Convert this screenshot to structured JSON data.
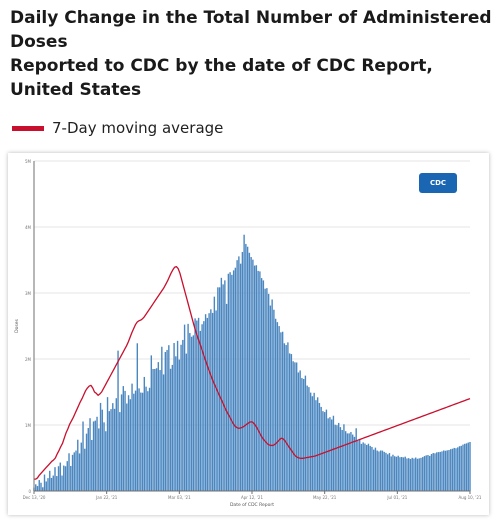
{
  "page": {
    "title_line1": "Daily Change in the Total Number of Administered Doses",
    "title_line2": "Reported to CDC by the date of CDC Report, United States"
  },
  "legend": {
    "label": "7-Day moving average",
    "color": "#c8102e"
  },
  "logo": {
    "text": "CDC",
    "name": "cdc-logo"
  },
  "colors": {
    "bars": "#4a86c0",
    "line": "#c8102e",
    "grid": "#e6e6e6",
    "axis": "#6f6f6f"
  },
  "chart_data": {
    "type": "bar",
    "title": "",
    "xlabel": "Date of CDC Report",
    "ylabel": "Doses",
    "ylim": [
      0,
      5000000
    ],
    "yticks": [
      0,
      1000000,
      2000000,
      3000000,
      4000000,
      5000000
    ],
    "ytick_labels": [
      "0",
      "1M",
      "2M",
      "3M",
      "4M",
      "5M"
    ],
    "x_tick_labels": [
      "Dec 13, '20",
      "Jan 22, '21",
      "Mar 03, '21",
      "Apr 12, '21",
      "May 22, '21",
      "Jul 01, '21",
      "Aug 10, '21"
    ],
    "x_tick_days": [
      0,
      40,
      80,
      120,
      160,
      200,
      240
    ],
    "grid": true,
    "start_day": 0,
    "series": [
      {
        "name": "Daily Change",
        "kind": "bar",
        "values": [
          52060,
          101232,
          74930,
          166101,
          125264,
          56567,
          249290,
          144522,
          194917,
          306226,
          197698,
          233958,
          361005,
          226281,
          375398,
          431003,
          234567,
          385722,
          374706,
          452244,
          571442,
          378815,
          548017,
          585442,
          613000,
          776599,
          569012,
          733542,
          1053071,
          641006,
          869131,
          954728,
          1103296,
          773317,
          1053806,
          1066689,
          1124768,
          948269,
          1334436,
          1232290,
          1040097,
          905651,
          1422493,
          1209993,
          1240622,
          1331289,
          1244946,
          1405718,
          2126602,
          1195429,
          1463262,
          1589612,
          1516806,
          1325734,
          1451416,
          1390856,
          1626659,
          1474710,
          1521520,
          2238126,
          1554733,
          1491922,
          1489099,
          1728312,
          1580983,
          1512227,
          1564051,
          2054713,
          1848768,
          1848738,
          1860123,
          1952402,
          1833005,
          2185734,
          1766221,
          2106138,
          2137117,
          2209307,
          1851946,
          1910768,
          2242111,
          2040931,
          2275244,
          1990761,
          2215893,
          2288587,
          2520733,
          2082209,
          2532436,
          2393211,
          2337212,
          2358718,
          2615566,
          2582418,
          2623656,
          2426221,
          2526578,
          2573101,
          2678931,
          2622646,
          2694000,
          2753102,
          2698315,
          2944811,
          2735640,
          3085910,
          3086024,
          3229812,
          3130380,
          3191651,
          2835212,
          3291962,
          3315082,
          3275136,
          3342582,
          3383104,
          3497264,
          3554919,
          3444402,
          3620813,
          3883212,
          3743287,
          3701103,
          3609232,
          3544711,
          3505474,
          3415226,
          3421010,
          3335162,
          3327224,
          3226019,
          3190713,
          3065200,
          3073806,
          2986419,
          2810218,
          2902005,
          2747004,
          2609813,
          2558621,
          2499003,
          2404102,
          2413315,
          2237926,
          2211620,
          2251811,
          2085113,
          2074606,
          1966114,
          1949219,
          1947002,
          1796204,
          1826605,
          1711007,
          1697115,
          1747812,
          1597401,
          1574102,
          1490603,
          1436004,
          1487601,
          1376102,
          1419115,
          1333601,
          1274109,
          1210216,
          1195502,
          1233308,
          1100812,
          1118415,
          1084011,
          1140300,
          1004107,
          996500,
          1031602,
          968110,
          924816,
          1011301,
          906302,
          872902,
          873403,
          893605,
          855101,
          820409,
          950602,
          760110,
          785803,
          714015,
          737108,
          718801,
          697213,
          716105,
          683409,
          667403,
          626909,
          656802,
          613005,
          599401,
          614112,
          611802,
          593004,
          578601,
          556106,
          575103,
          524108,
          549702,
          526701,
          519113,
          534604,
          512008,
          515007,
          509411,
          520315,
          493211,
          497902,
          485009,
          502501,
          491602,
          507101,
          488513,
          495215,
          502308,
          513811,
          529005,
          540216,
          545102,
          531907,
          560313,
          575004,
          570811,
          585602,
          589418,
          592512,
          600301,
          614215,
          609902,
          616007,
          621308,
          634105,
          640311,
          652909,
          647404,
          661102,
          678702,
          684911,
          703400,
          715105,
          721902,
          734000,
          742601
        ]
      },
      {
        "name": "7-Day moving average",
        "kind": "line",
        "values": [
          180000,
          180000,
          200000,
          240000,
          270000,
          300000,
          330000,
          360000,
          390000,
          420000,
          450000,
          470000,
          500000,
          560000,
          610000,
          670000,
          720000,
          800000,
          880000,
          940000,
          1010000,
          1060000,
          1110000,
          1170000,
          1230000,
          1290000,
          1350000,
          1400000,
          1460000,
          1520000,
          1560000,
          1590000,
          1600000,
          1560000,
          1500000,
          1480000,
          1450000,
          1470000,
          1500000,
          1550000,
          1600000,
          1650000,
          1700000,
          1750000,
          1800000,
          1850000,
          1900000,
          1950000,
          2000000,
          2050000,
          2100000,
          2150000,
          2200000,
          2260000,
          2330000,
          2400000,
          2460000,
          2520000,
          2560000,
          2580000,
          2590000,
          2610000,
          2640000,
          2680000,
          2720000,
          2760000,
          2800000,
          2840000,
          2880000,
          2920000,
          2960000,
          3000000,
          3040000,
          3080000,
          3130000,
          3180000,
          3240000,
          3300000,
          3350000,
          3390000,
          3400000,
          3370000,
          3300000,
          3200000,
          3100000,
          3000000,
          2900000,
          2800000,
          2700000,
          2600000,
          2500000,
          2410000,
          2330000,
          2250000,
          2170000,
          2090000,
          2010000,
          1930000,
          1850000,
          1780000,
          1710000,
          1640000,
          1580000,
          1520000,
          1460000,
          1400000,
          1340000,
          1280000,
          1220000,
          1170000,
          1120000,
          1070000,
          1020000,
          980000,
          960000,
          950000,
          955000,
          965000,
          980000,
          1000000,
          1020000,
          1040000,
          1050000,
          1040000,
          1010000,
          970000,
          920000,
          870000,
          820000,
          780000,
          750000,
          720000,
          700000,
          690000,
          690000,
          700000,
          720000,
          750000,
          780000,
          800000,
          790000,
          760000,
          720000,
          680000,
          640000,
          600000,
          560000,
          530000,
          510000,
          500000,
          495000,
          495000,
          500000,
          505000,
          510000,
          515000,
          520000,
          525000,
          530000,
          540000,
          550000,
          560000,
          570000,
          580000,
          590000,
          600000,
          610000,
          620000,
          630000,
          640000,
          650000,
          660000,
          670000,
          680000,
          690000,
          700000,
          710000,
          720000,
          730000,
          740000,
          750000,
          760000,
          770000,
          780000,
          790000,
          800000,
          810000,
          820000,
          830000,
          840000,
          850000,
          860000,
          870000,
          880000,
          890000,
          900000,
          910000,
          920000,
          930000,
          940000,
          950000,
          960000,
          970000,
          980000,
          990000,
          1000000,
          1010000,
          1020000,
          1030000,
          1040000,
          1050000,
          1060000,
          1070000,
          1080000,
          1090000,
          1100000,
          1110000,
          1120000,
          1130000,
          1140000,
          1150000,
          1160000,
          1170000,
          1180000,
          1190000,
          1200000,
          1210000,
          1220000,
          1230000,
          1240000,
          1250000,
          1260000,
          1270000,
          1280000,
          1290000,
          1300000,
          1310000,
          1320000,
          1330000,
          1340000,
          1350000,
          1360000,
          1370000,
          1380000,
          1390000,
          1400000
        ]
      }
    ]
  }
}
